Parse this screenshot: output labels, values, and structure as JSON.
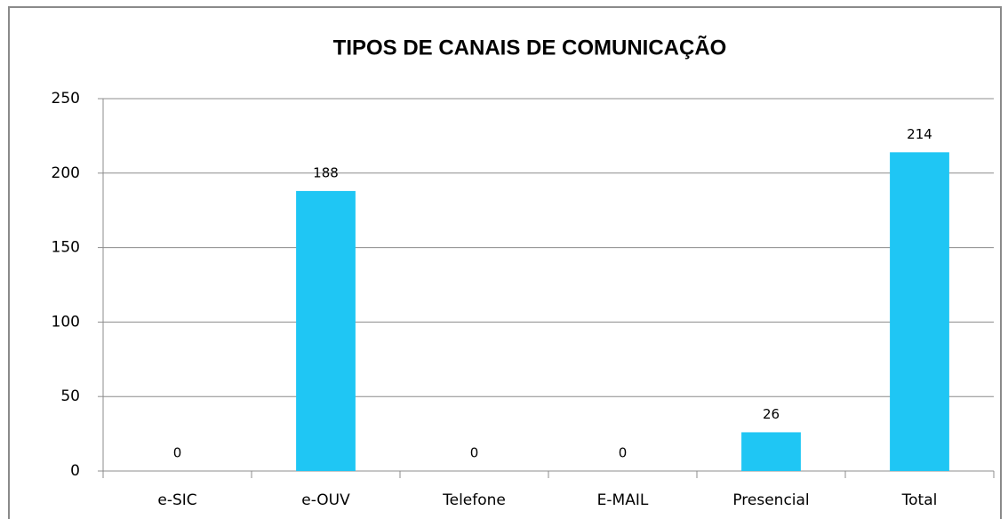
{
  "chart_data": {
    "type": "bar",
    "title": "TIPOS DE CANAIS DE COMUNICAÇÃO",
    "categories": [
      "e-SIC",
      "e-OUV",
      "Telefone",
      "E-MAIL",
      "Presencial",
      "Total"
    ],
    "values": [
      0,
      188,
      0,
      0,
      26,
      214
    ],
    "color": "#1fc6f4",
    "ylim": [
      0,
      250
    ],
    "yticks": [
      0,
      50,
      100,
      150,
      200,
      250
    ],
    "grid": true
  }
}
